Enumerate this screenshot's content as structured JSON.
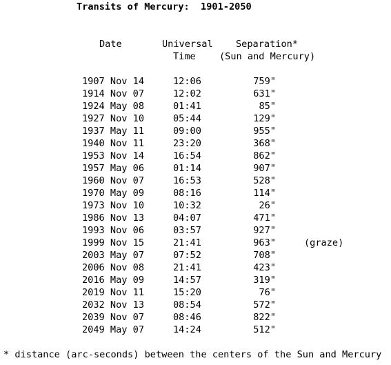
{
  "title": "Transits of Mercury:  1901-2050",
  "headers": {
    "date": "Date",
    "time_1": "Universal",
    "time_2": "Time",
    "separation_1": "Separation*",
    "separation_2": "(Sun and Mercury)"
  },
  "rows": [
    {
      "date": "1907 Nov 14",
      "time": "12:06",
      "separation": "759\""
    },
    {
      "date": "1914 Nov 07",
      "time": "12:02",
      "separation": "631\""
    },
    {
      "date": "1924 May 08",
      "time": "01:41",
      "separation": "85\""
    },
    {
      "date": "1927 Nov 10",
      "time": "05:44",
      "separation": "129\""
    },
    {
      "date": "1937 May 11",
      "time": "09:00",
      "separation": "955\""
    },
    {
      "date": "1940 Nov 11",
      "time": "23:20",
      "separation": "368\""
    },
    {
      "date": "1953 Nov 14",
      "time": "16:54",
      "separation": "862\""
    },
    {
      "date": "1957 May 06",
      "time": "01:14",
      "separation": "907\""
    },
    {
      "date": "1960 Nov 07",
      "time": "16:53",
      "separation": "528\""
    },
    {
      "date": "1970 May 09",
      "time": "08:16",
      "separation": "114\""
    },
    {
      "date": "1973 Nov 10",
      "time": "10:32",
      "separation": "26\""
    },
    {
      "date": "1986 Nov 13",
      "time": "04:07",
      "separation": "471\""
    },
    {
      "date": "1993 Nov 06",
      "time": "03:57",
      "separation": "927\""
    },
    {
      "date": "1999 Nov 15",
      "time": "21:41",
      "separation": "963\"",
      "note": "(graze)"
    },
    {
      "date": "2003 May 07",
      "time": "07:52",
      "separation": "708\""
    },
    {
      "date": "2006 Nov 08",
      "time": "21:41",
      "separation": "423\""
    },
    {
      "date": "2016 May 09",
      "time": "14:57",
      "separation": "319\""
    },
    {
      "date": "2019 Nov 11",
      "time": "15:20",
      "separation": "76\""
    },
    {
      "date": "2032 Nov 13",
      "time": "08:54",
      "separation": "572\""
    },
    {
      "date": "2039 Nov 07",
      "time": "08:46",
      "separation": "822\""
    },
    {
      "date": "2049 May 07",
      "time": "14:24",
      "separation": "512\""
    }
  ],
  "footnote": "* distance (arc-seconds) between the centers of the Sun and Mercury"
}
